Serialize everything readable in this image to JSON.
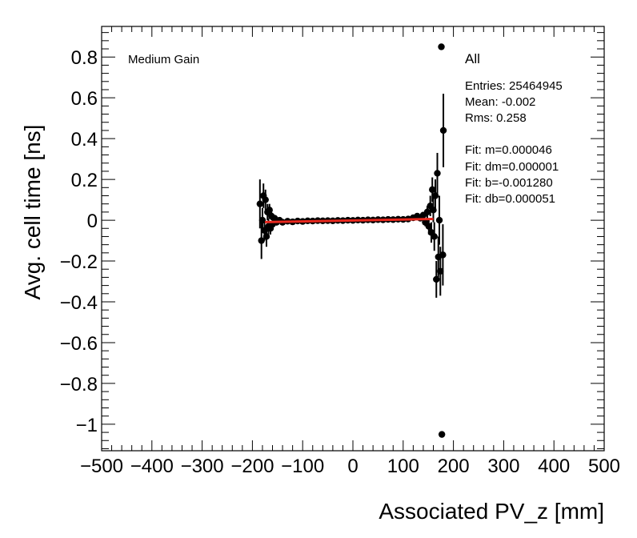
{
  "chart_data": {
    "type": "scatter",
    "title": "",
    "xlabel": "Associated PV_z [mm]",
    "ylabel": "Avg. cell time [ns]",
    "xlim": [
      -500,
      500
    ],
    "ylim": [
      -1.13,
      0.95
    ],
    "x_ticks": [
      -500,
      -400,
      -300,
      -200,
      -100,
      0,
      100,
      200,
      300,
      400,
      500
    ],
    "x_tick_labels": [
      "−500",
      "−400",
      "−300",
      "−200",
      "−100",
      "0",
      "100",
      "200",
      "300",
      "400",
      "500"
    ],
    "y_ticks": [
      0.8,
      0.6,
      0.4,
      0.2,
      0,
      -0.2,
      -0.4,
      -0.6,
      -0.8,
      -1
    ],
    "y_tick_labels": [
      "0.8",
      "0.6",
      "0.4",
      "0.2",
      "0",
      "−0.2",
      "−0.4",
      "−0.6",
      "−0.8",
      "−1"
    ],
    "annotation": "Medium Gain",
    "stats": {
      "title": "All",
      "lines": [
        "Entries: 25464945",
        "Mean: -0.002",
        "Rms: 0.258",
        "",
        "Fit: m=0.000046",
        "Fit: dm=0.000001",
        "Fit: b=-0.001280",
        "Fit: db=0.000051"
      ]
    },
    "fit_line": {
      "x": [
        -175,
        160
      ],
      "y": [
        -0.0093,
        0.0061
      ],
      "color": "#e8281e"
    },
    "points": [
      {
        "x": -185,
        "y": 0.08,
        "err": 0.12
      },
      {
        "x": -182,
        "y": -0.1,
        "err": 0.09
      },
      {
        "x": -180,
        "y": 0.0,
        "err": 0.06
      },
      {
        "x": -178,
        "y": 0.12,
        "err": 0.06
      },
      {
        "x": -176,
        "y": -0.05,
        "err": 0.05
      },
      {
        "x": -174,
        "y": 0.1,
        "err": 0.05
      },
      {
        "x": -172,
        "y": -0.08,
        "err": 0.05
      },
      {
        "x": -170,
        "y": 0.04,
        "err": 0.04
      },
      {
        "x": -168,
        "y": -0.03,
        "err": 0.04
      },
      {
        "x": -166,
        "y": 0.05,
        "err": 0.03
      },
      {
        "x": -164,
        "y": -0.04,
        "err": 0.03
      },
      {
        "x": -162,
        "y": 0.02,
        "err": 0.02
      },
      {
        "x": -160,
        "y": -0.02,
        "err": 0.02
      },
      {
        "x": -156,
        "y": 0.01,
        "err": 0.015
      },
      {
        "x": -152,
        "y": -0.01,
        "err": 0.012
      },
      {
        "x": -146,
        "y": 0.0,
        "err": 0.01
      },
      {
        "x": -140,
        "y": -0.01,
        "err": 0.008
      },
      {
        "x": -130,
        "y": -0.005,
        "err": 0.006
      },
      {
        "x": -120,
        "y": -0.008,
        "err": 0.005
      },
      {
        "x": -110,
        "y": -0.004,
        "err": 0.004
      },
      {
        "x": -100,
        "y": -0.006,
        "err": 0.004
      },
      {
        "x": -90,
        "y": -0.003,
        "err": 0.003
      },
      {
        "x": -80,
        "y": -0.004,
        "err": 0.003
      },
      {
        "x": -70,
        "y": -0.002,
        "err": 0.003
      },
      {
        "x": -60,
        "y": -0.003,
        "err": 0.003
      },
      {
        "x": -50,
        "y": -0.002,
        "err": 0.003
      },
      {
        "x": -40,
        "y": -0.003,
        "err": 0.003
      },
      {
        "x": -30,
        "y": -0.001,
        "err": 0.003
      },
      {
        "x": -20,
        "y": -0.002,
        "err": 0.003
      },
      {
        "x": -10,
        "y": 0.0,
        "err": 0.003
      },
      {
        "x": 0,
        "y": -0.001,
        "err": 0.003
      },
      {
        "x": 10,
        "y": 0.001,
        "err": 0.003
      },
      {
        "x": 20,
        "y": 0.0,
        "err": 0.003
      },
      {
        "x": 30,
        "y": 0.002,
        "err": 0.003
      },
      {
        "x": 40,
        "y": 0.001,
        "err": 0.003
      },
      {
        "x": 50,
        "y": 0.003,
        "err": 0.003
      },
      {
        "x": 60,
        "y": 0.002,
        "err": 0.003
      },
      {
        "x": 70,
        "y": 0.004,
        "err": 0.003
      },
      {
        "x": 80,
        "y": 0.003,
        "err": 0.003
      },
      {
        "x": 90,
        "y": 0.005,
        "err": 0.004
      },
      {
        "x": 100,
        "y": 0.004,
        "err": 0.004
      },
      {
        "x": 110,
        "y": 0.006,
        "err": 0.005
      },
      {
        "x": 120,
        "y": 0.012,
        "err": 0.006
      },
      {
        "x": 128,
        "y": 0.02,
        "err": 0.008
      },
      {
        "x": 134,
        "y": 0.01,
        "err": 0.01
      },
      {
        "x": 140,
        "y": 0.025,
        "err": 0.015
      },
      {
        "x": 144,
        "y": -0.01,
        "err": 0.02
      },
      {
        "x": 148,
        "y": 0.04,
        "err": 0.03
      },
      {
        "x": 151,
        "y": -0.03,
        "err": 0.04
      },
      {
        "x": 154,
        "y": 0.07,
        "err": 0.05
      },
      {
        "x": 156,
        "y": -0.06,
        "err": 0.05
      },
      {
        "x": 158,
        "y": 0.15,
        "err": 0.06
      },
      {
        "x": 160,
        "y": 0.05,
        "err": 0.06
      },
      {
        "x": 162,
        "y": -0.08,
        "err": 0.07
      },
      {
        "x": 164,
        "y": 0.12,
        "err": 0.08
      },
      {
        "x": 166,
        "y": -0.29,
        "err": 0.09
      },
      {
        "x": 168,
        "y": 0.23,
        "err": 0.1
      },
      {
        "x": 170,
        "y": -0.18,
        "err": 0.1
      },
      {
        "x": 172,
        "y": 0.0,
        "err": 0.12
      },
      {
        "x": 174,
        "y": -0.25,
        "err": 0.12
      },
      {
        "x": 176,
        "y": 0.85,
        "err": 0.0
      },
      {
        "x": 177,
        "y": -1.05,
        "err": 0.0
      },
      {
        "x": 179,
        "y": -0.17,
        "err": 0.15
      },
      {
        "x": 180,
        "y": 0.44,
        "err": 0.18
      }
    ]
  }
}
